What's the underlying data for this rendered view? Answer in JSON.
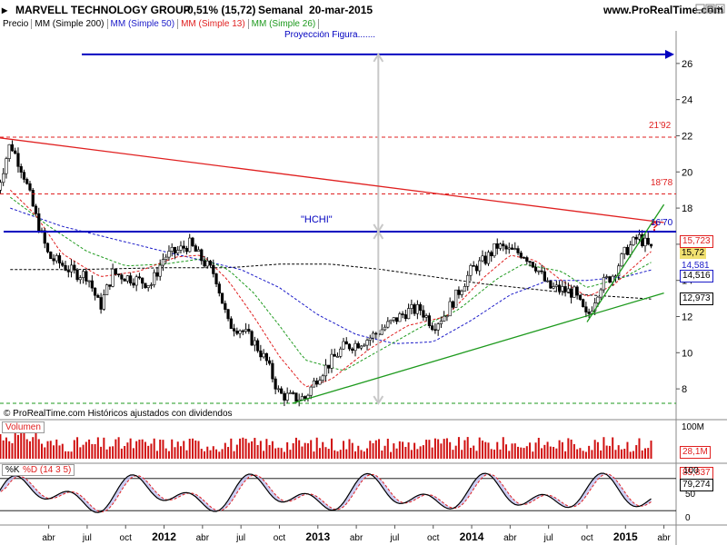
{
  "header": {
    "symbol": "MARVELL TECHNOLOGY GROUP",
    "change": "-0,51% (15,72)",
    "period": "Semanal",
    "date": "20-mar-2015",
    "site": "www.ProRealTime.com"
  },
  "legend": {
    "price": "Precio",
    "ma200": "MM (Simple 200)",
    "ma50": "MM (Simple 50)",
    "ma13": "MM (Simple 13)",
    "ma26": "MM (Simple 26)"
  },
  "colors": {
    "ma200": "#000000",
    "ma50": "#1a1ac8",
    "ma13": "#e02020",
    "ma26": "#1e9a1e",
    "candle_up": "#ffffff",
    "candle_down": "#000000",
    "hchi_line": "#0000c0",
    "volume_bars": "#d01010",
    "stoch_k": "#000000",
    "stoch_d": "#e02020",
    "stoch_fill": "#b8b8ee"
  },
  "icons": {
    "minimize": "window-minimize-icon",
    "maximize": "window-maximize-icon",
    "close": "close-icon"
  },
  "annotations": {
    "projection": "Proyección Figura.......",
    "hchi": "\"HCHI\"",
    "question": "?",
    "copyright": "© ProRealTime.com  Históricos ajustados con dividendos",
    "level_2192": "21'92",
    "level_1878": "18'78",
    "level_1670": "16'70"
  },
  "price_labels": {
    "last": "15,723",
    "close": "15,72",
    "ma_a": "14,581",
    "ma_b": "14,516",
    "ma_c": "12,973"
  },
  "panels": {
    "volume_label": "Volumen",
    "volume_scale": "100M",
    "volume_last": "28,1M",
    "stoch_k_label": "%K",
    "stoch_d_label": "%D (14 3 5)",
    "stoch_k_value": "85,837",
    "stoch_d_value": "79,274",
    "stoch_ticks": [
      "100",
      "50",
      "0"
    ]
  },
  "chart_data": {
    "type": "candlestick",
    "title": "MARVELL TECHNOLOGY GROUP",
    "period": "weekly",
    "y_ticks": [
      "8",
      "10",
      "12",
      "14",
      "16",
      "18",
      "20",
      "22",
      "24",
      "26"
    ],
    "ylim": [
      6.8,
      27.5
    ],
    "x_ticks": [
      "abr",
      "jul",
      "oct",
      "2012",
      "abr",
      "jul",
      "oct",
      "2013",
      "abr",
      "jul",
      "oct",
      "2014",
      "abr",
      "jul",
      "oct",
      "2015",
      "abr"
    ],
    "x_tick_dates": [
      "2011-04",
      "2011-07",
      "2011-10",
      "2012-01",
      "2012-04",
      "2012-07",
      "2012-10",
      "2013-01",
      "2013-04",
      "2013-07",
      "2013-10",
      "2014-01",
      "2014-04",
      "2014-07",
      "2014-10",
      "2015-01",
      "2015-04"
    ],
    "levels": [
      {
        "label": "21'92",
        "value": 21.92,
        "style": "dashed",
        "color": "#e02020"
      },
      {
        "label": "18'78",
        "value": 18.78,
        "style": "dashed",
        "color": "#e02020"
      },
      {
        "label": "16'70",
        "value": 16.7,
        "style": "solid",
        "color": "#0000c0"
      },
      {
        "label": "",
        "value": 7.2,
        "style": "dashed",
        "color": "#1e9a1e"
      },
      {
        "label": "",
        "value": 26.5,
        "style": "arrow",
        "color": "#0000c0"
      }
    ],
    "price_path": [
      [
        "2010-12",
        19.0
      ],
      [
        "2011-01",
        21.6
      ],
      [
        "2011-02",
        20.0
      ],
      [
        "2011-03",
        17.5
      ],
      [
        "2011-04",
        15.3
      ],
      [
        "2011-05",
        14.9
      ],
      [
        "2011-06",
        14.4
      ],
      [
        "2011-07",
        14.3
      ],
      [
        "2011-08",
        12.5
      ],
      [
        "2011-09",
        14.4
      ],
      [
        "2011-10",
        14.2
      ],
      [
        "2011-11",
        14.0
      ],
      [
        "2011-12",
        13.8
      ],
      [
        "2012-01",
        15.3
      ],
      [
        "2012-02",
        15.6
      ],
      [
        "2012-03",
        16.0
      ],
      [
        "2012-04",
        15.1
      ],
      [
        "2012-05",
        14.3
      ],
      [
        "2012-06",
        11.6
      ],
      [
        "2012-07",
        11.3
      ],
      [
        "2012-08",
        10.6
      ],
      [
        "2012-09",
        9.5
      ],
      [
        "2012-10",
        7.7
      ],
      [
        "2012-11",
        7.5
      ],
      [
        "2012-12",
        7.5
      ],
      [
        "2013-01",
        8.7
      ],
      [
        "2013-02",
        9.5
      ],
      [
        "2013-03",
        10.3
      ],
      [
        "2013-04",
        10.5
      ],
      [
        "2013-05",
        10.8
      ],
      [
        "2013-06",
        11.3
      ],
      [
        "2013-07",
        11.8
      ],
      [
        "2013-08",
        12.3
      ],
      [
        "2013-09",
        12.4
      ],
      [
        "2013-10",
        11.5
      ],
      [
        "2013-11",
        12.2
      ],
      [
        "2013-12",
        13.4
      ],
      [
        "2014-01",
        14.6
      ],
      [
        "2014-02",
        15.1
      ],
      [
        "2014-03",
        15.9
      ],
      [
        "2014-04",
        15.6
      ],
      [
        "2014-05",
        15.5
      ],
      [
        "2014-06",
        14.8
      ],
      [
        "2014-07",
        13.6
      ],
      [
        "2014-08",
        13.5
      ],
      [
        "2014-09",
        13.3
      ],
      [
        "2014-10",
        11.9
      ],
      [
        "2014-11",
        13.7
      ],
      [
        "2014-12",
        14.3
      ],
      [
        "2015-01",
        15.6
      ],
      [
        "2015-02",
        16.4
      ],
      [
        "2015-03",
        15.72
      ]
    ],
    "ma13": [
      [
        "2011-01",
        19.0
      ],
      [
        "2011-03",
        17.6
      ],
      [
        "2011-05",
        15.5
      ],
      [
        "2011-08",
        14.2
      ],
      [
        "2011-11",
        14.5
      ],
      [
        "2012-02",
        15.3
      ],
      [
        "2012-04",
        15.4
      ],
      [
        "2012-06",
        14.0
      ],
      [
        "2012-08",
        12.0
      ],
      [
        "2012-10",
        9.8
      ],
      [
        "2012-12",
        8.1
      ],
      [
        "2013-02",
        8.5
      ],
      [
        "2013-05",
        10.2
      ],
      [
        "2013-08",
        11.5
      ],
      [
        "2013-11",
        12.0
      ],
      [
        "2014-02",
        14.2
      ],
      [
        "2014-04",
        15.4
      ],
      [
        "2014-06",
        15.1
      ],
      [
        "2014-08",
        14.0
      ],
      [
        "2014-10",
        13.1
      ],
      [
        "2014-12",
        13.7
      ],
      [
        "2015-03",
        15.6
      ]
    ],
    "ma26": [
      [
        "2011-01",
        18.6
      ],
      [
        "2011-04",
        17.0
      ],
      [
        "2011-07",
        15.6
      ],
      [
        "2011-10",
        14.8
      ],
      [
        "2012-01",
        14.9
      ],
      [
        "2012-04",
        15.2
      ],
      [
        "2012-06",
        14.6
      ],
      [
        "2012-08",
        13.3
      ],
      [
        "2012-10",
        11.5
      ],
      [
        "2012-12",
        9.6
      ],
      [
        "2013-03",
        9.0
      ],
      [
        "2013-06",
        10.2
      ],
      [
        "2013-09",
        11.4
      ],
      [
        "2013-12",
        12.4
      ],
      [
        "2014-03",
        14.1
      ],
      [
        "2014-05",
        14.9
      ],
      [
        "2014-08",
        14.5
      ],
      [
        "2014-10",
        13.6
      ],
      [
        "2015-01",
        14.2
      ],
      [
        "2015-03",
        15.0
      ]
    ],
    "ma50": [
      [
        "2011-01",
        18.0
      ],
      [
        "2011-05",
        17.0
      ],
      [
        "2011-09",
        16.3
      ],
      [
        "2012-01",
        15.6
      ],
      [
        "2012-04",
        15.1
      ],
      [
        "2012-07",
        14.6
      ],
      [
        "2012-10",
        13.6
      ],
      [
        "2013-01",
        12.1
      ],
      [
        "2013-04",
        11.0
      ],
      [
        "2013-07",
        10.5
      ],
      [
        "2013-10",
        10.6
      ],
      [
        "2014-01",
        11.8
      ],
      [
        "2014-04",
        13.2
      ],
      [
        "2014-07",
        14.0
      ],
      [
        "2014-10",
        14.0
      ],
      [
        "2015-01",
        14.2
      ],
      [
        "2015-03",
        14.58
      ]
    ],
    "ma200": [
      [
        "2011-01",
        14.6
      ],
      [
        "2011-06",
        14.6
      ],
      [
        "2012-01",
        14.7
      ],
      [
        "2012-06",
        14.7
      ],
      [
        "2012-10",
        14.9
      ],
      [
        "2013-02",
        14.9
      ],
      [
        "2013-06",
        14.6
      ],
      [
        "2013-10",
        14.2
      ],
      [
        "2014-02",
        13.8
      ],
      [
        "2014-06",
        13.5
      ],
      [
        "2014-10",
        13.2
      ],
      [
        "2015-03",
        12.97
      ]
    ],
    "trendlines": [
      {
        "from": [
          "2010-12",
          21.9
        ],
        "to": [
          "2015-04",
          17.2
        ],
        "color": "#e02020"
      },
      {
        "from": [
          "2012-11",
          7.2
        ],
        "to": [
          "2015-04",
          13.3
        ],
        "color": "#1e9a1e"
      },
      {
        "from": [
          "2014-10",
          11.7
        ],
        "to": [
          "2015-04",
          18.2
        ],
        "color": "#1e9a1e"
      }
    ],
    "projection_arrows": [
      {
        "at": "2013-06",
        "from": 16.7,
        "to": 26.5
      },
      {
        "at": "2013-06",
        "from": 16.7,
        "to": 7.2
      }
    ],
    "volume": {
      "unit": "M",
      "scale_label": "100M",
      "last": 28.1
    },
    "stochastic": {
      "k_last": 85.837,
      "d_last": 79.274,
      "ylim": [
        0,
        100
      ],
      "bands": [
        20,
        80
      ]
    }
  }
}
